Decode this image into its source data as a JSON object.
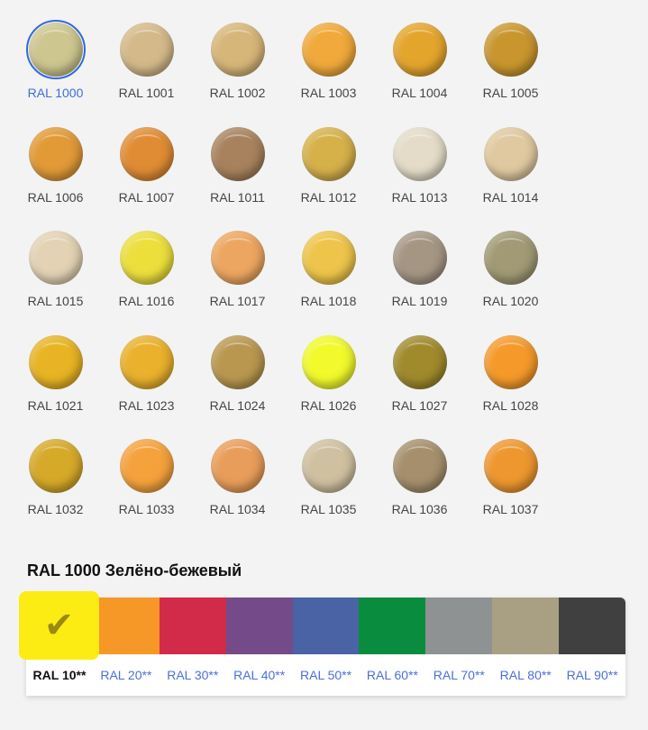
{
  "colors": [
    {
      "label": "RAL 1000",
      "hex": "#cdc68f",
      "selected": true
    },
    {
      "label": "RAL 1001",
      "hex": "#d4b98a"
    },
    {
      "label": "RAL 1002",
      "hex": "#d7b679"
    },
    {
      "label": "RAL 1003",
      "hex": "#f0a93a"
    },
    {
      "label": "RAL 1004",
      "hex": "#e4a52d"
    },
    {
      "label": "RAL 1005",
      "hex": "#c9962e"
    },
    {
      "label": "RAL 1006",
      "hex": "#e19a36"
    },
    {
      "label": "RAL 1007",
      "hex": "#e08c34"
    },
    {
      "label": "RAL 1011",
      "hex": "#a8825d"
    },
    {
      "label": "RAL 1012",
      "hex": "#d6b14a"
    },
    {
      "label": "RAL 1013",
      "hex": "#e4dcc8"
    },
    {
      "label": "RAL 1014",
      "hex": "#e0c9a0"
    },
    {
      "label": "RAL 1015",
      "hex": "#e3d2b4"
    },
    {
      "label": "RAL 1016",
      "hex": "#ecdf3c"
    },
    {
      "label": "RAL 1017",
      "hex": "#eda661"
    },
    {
      "label": "RAL 1018",
      "hex": "#eec54a"
    },
    {
      "label": "RAL 1019",
      "hex": "#a59684"
    },
    {
      "label": "RAL 1020",
      "hex": "#a19a75"
    },
    {
      "label": "RAL 1021",
      "hex": "#e8b424"
    },
    {
      "label": "RAL 1023",
      "hex": "#e9b12c"
    },
    {
      "label": "RAL 1024",
      "hex": "#b9974f"
    },
    {
      "label": "RAL 1026",
      "hex": "#f2fa2c"
    },
    {
      "label": "RAL 1027",
      "hex": "#a08a2c"
    },
    {
      "label": "RAL 1028",
      "hex": "#f59a2a"
    },
    {
      "label": "RAL 1032",
      "hex": "#d6a928"
    },
    {
      "label": "RAL 1033",
      "hex": "#f5a23d"
    },
    {
      "label": "RAL 1034",
      "hex": "#e99d5a"
    },
    {
      "label": "RAL 1035",
      "hex": "#cfc0a0"
    },
    {
      "label": "RAL 1036",
      "hex": "#a58f6c"
    },
    {
      "label": "RAL 1037",
      "hex": "#ee972f"
    }
  ],
  "selected_title": "RAL 1000 Зелёно-бежевый",
  "palette": [
    {
      "label": "RAL 10**",
      "hex": "#fcec14",
      "active": true
    },
    {
      "label": "RAL 20**",
      "hex": "#f59828"
    },
    {
      "label": "RAL 30**",
      "hex": "#d22b4a"
    },
    {
      "label": "RAL 40**",
      "hex": "#744b88"
    },
    {
      "label": "RAL 50**",
      "hex": "#4963a5"
    },
    {
      "label": "RAL 60**",
      "hex": "#0a8c3e"
    },
    {
      "label": "RAL 70**",
      "hex": "#8f9292"
    },
    {
      "label": "RAL 80**",
      "hex": "#a9a083"
    },
    {
      "label": "RAL 90**",
      "hex": "#404040"
    }
  ],
  "check_icon": "✔"
}
